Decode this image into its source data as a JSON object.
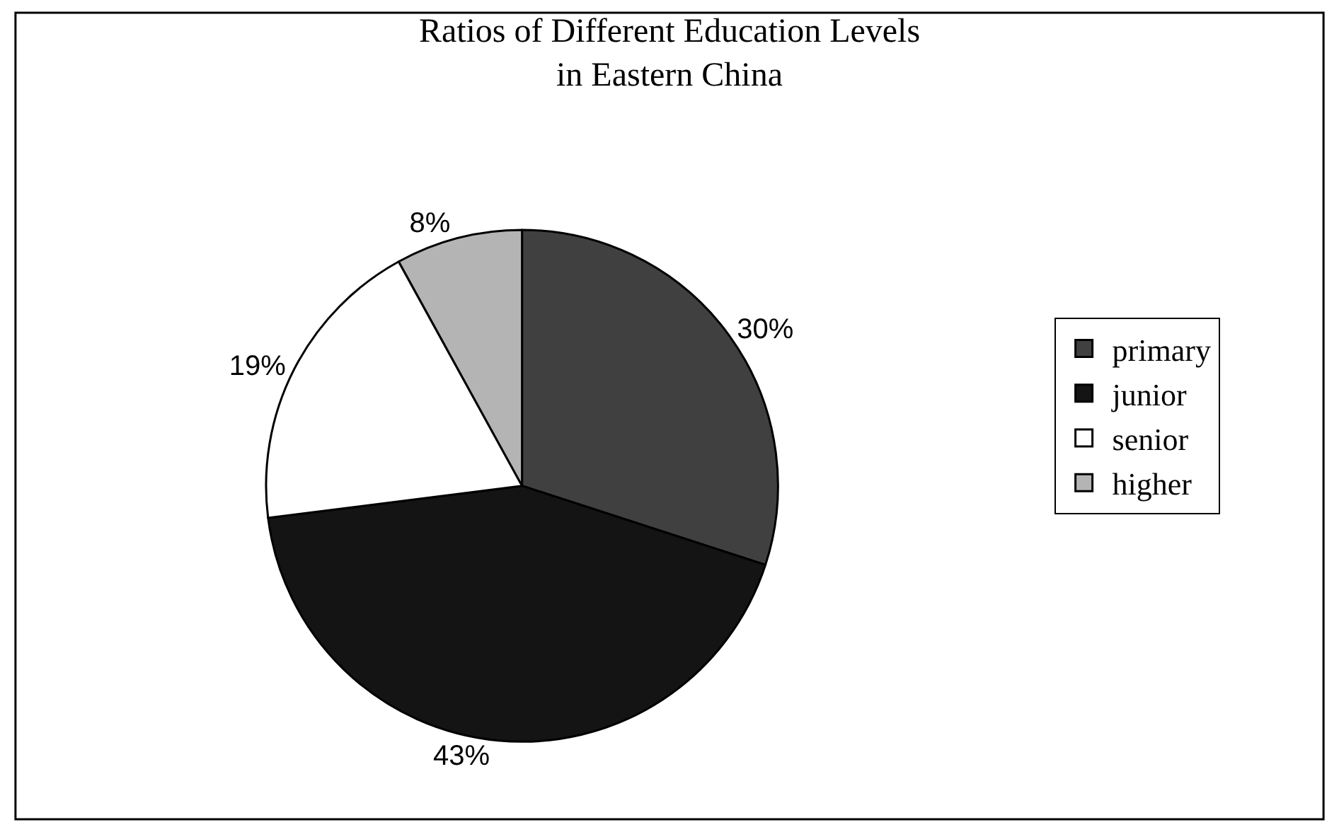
{
  "chart_data": {
    "type": "pie",
    "title": "Ratios of Different Education Levels\nin Eastern China",
    "categories": [
      "primary",
      "junior",
      "senior",
      "higher"
    ],
    "values": [
      30,
      43,
      19,
      8
    ],
    "colors": [
      "#404040",
      "#141414",
      "#ffffff",
      "#b4b4b4"
    ],
    "value_labels": [
      "30%",
      "43%",
      "19%",
      "8%"
    ],
    "legend": "right"
  }
}
